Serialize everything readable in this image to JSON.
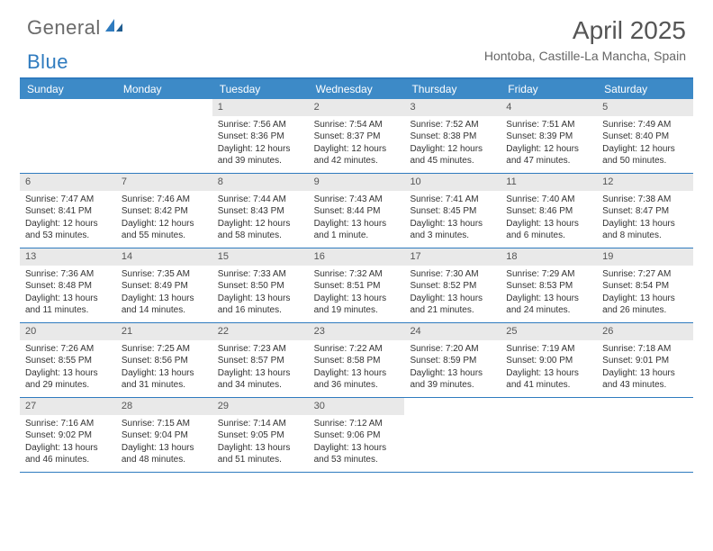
{
  "brand": {
    "text_gray": "General",
    "text_blue": "Blue"
  },
  "title": "April 2025",
  "location": "Hontoba, Castille-La Mancha, Spain",
  "colors": {
    "header_bg": "#3d8ac7",
    "border": "#2f7bbf",
    "daynum_bg": "#e9e9e9",
    "text_main": "#333333",
    "text_muted": "#666666",
    "page_bg": "#ffffff"
  },
  "typography": {
    "title_fontsize": 28,
    "location_fontsize": 14,
    "dayhead_fontsize": 12,
    "body_fontsize": 10
  },
  "day_headers": [
    "Sunday",
    "Monday",
    "Tuesday",
    "Wednesday",
    "Thursday",
    "Friday",
    "Saturday"
  ],
  "weeks": [
    [
      {
        "n": "",
        "sr": "",
        "ss": "",
        "dl": ""
      },
      {
        "n": "",
        "sr": "",
        "ss": "",
        "dl": ""
      },
      {
        "n": "1",
        "sr": "Sunrise: 7:56 AM",
        "ss": "Sunset: 8:36 PM",
        "dl": "Daylight: 12 hours and 39 minutes."
      },
      {
        "n": "2",
        "sr": "Sunrise: 7:54 AM",
        "ss": "Sunset: 8:37 PM",
        "dl": "Daylight: 12 hours and 42 minutes."
      },
      {
        "n": "3",
        "sr": "Sunrise: 7:52 AM",
        "ss": "Sunset: 8:38 PM",
        "dl": "Daylight: 12 hours and 45 minutes."
      },
      {
        "n": "4",
        "sr": "Sunrise: 7:51 AM",
        "ss": "Sunset: 8:39 PM",
        "dl": "Daylight: 12 hours and 47 minutes."
      },
      {
        "n": "5",
        "sr": "Sunrise: 7:49 AM",
        "ss": "Sunset: 8:40 PM",
        "dl": "Daylight: 12 hours and 50 minutes."
      }
    ],
    [
      {
        "n": "6",
        "sr": "Sunrise: 7:47 AM",
        "ss": "Sunset: 8:41 PM",
        "dl": "Daylight: 12 hours and 53 minutes."
      },
      {
        "n": "7",
        "sr": "Sunrise: 7:46 AM",
        "ss": "Sunset: 8:42 PM",
        "dl": "Daylight: 12 hours and 55 minutes."
      },
      {
        "n": "8",
        "sr": "Sunrise: 7:44 AM",
        "ss": "Sunset: 8:43 PM",
        "dl": "Daylight: 12 hours and 58 minutes."
      },
      {
        "n": "9",
        "sr": "Sunrise: 7:43 AM",
        "ss": "Sunset: 8:44 PM",
        "dl": "Daylight: 13 hours and 1 minute."
      },
      {
        "n": "10",
        "sr": "Sunrise: 7:41 AM",
        "ss": "Sunset: 8:45 PM",
        "dl": "Daylight: 13 hours and 3 minutes."
      },
      {
        "n": "11",
        "sr": "Sunrise: 7:40 AM",
        "ss": "Sunset: 8:46 PM",
        "dl": "Daylight: 13 hours and 6 minutes."
      },
      {
        "n": "12",
        "sr": "Sunrise: 7:38 AM",
        "ss": "Sunset: 8:47 PM",
        "dl": "Daylight: 13 hours and 8 minutes."
      }
    ],
    [
      {
        "n": "13",
        "sr": "Sunrise: 7:36 AM",
        "ss": "Sunset: 8:48 PM",
        "dl": "Daylight: 13 hours and 11 minutes."
      },
      {
        "n": "14",
        "sr": "Sunrise: 7:35 AM",
        "ss": "Sunset: 8:49 PM",
        "dl": "Daylight: 13 hours and 14 minutes."
      },
      {
        "n": "15",
        "sr": "Sunrise: 7:33 AM",
        "ss": "Sunset: 8:50 PM",
        "dl": "Daylight: 13 hours and 16 minutes."
      },
      {
        "n": "16",
        "sr": "Sunrise: 7:32 AM",
        "ss": "Sunset: 8:51 PM",
        "dl": "Daylight: 13 hours and 19 minutes."
      },
      {
        "n": "17",
        "sr": "Sunrise: 7:30 AM",
        "ss": "Sunset: 8:52 PM",
        "dl": "Daylight: 13 hours and 21 minutes."
      },
      {
        "n": "18",
        "sr": "Sunrise: 7:29 AM",
        "ss": "Sunset: 8:53 PM",
        "dl": "Daylight: 13 hours and 24 minutes."
      },
      {
        "n": "19",
        "sr": "Sunrise: 7:27 AM",
        "ss": "Sunset: 8:54 PM",
        "dl": "Daylight: 13 hours and 26 minutes."
      }
    ],
    [
      {
        "n": "20",
        "sr": "Sunrise: 7:26 AM",
        "ss": "Sunset: 8:55 PM",
        "dl": "Daylight: 13 hours and 29 minutes."
      },
      {
        "n": "21",
        "sr": "Sunrise: 7:25 AM",
        "ss": "Sunset: 8:56 PM",
        "dl": "Daylight: 13 hours and 31 minutes."
      },
      {
        "n": "22",
        "sr": "Sunrise: 7:23 AM",
        "ss": "Sunset: 8:57 PM",
        "dl": "Daylight: 13 hours and 34 minutes."
      },
      {
        "n": "23",
        "sr": "Sunrise: 7:22 AM",
        "ss": "Sunset: 8:58 PM",
        "dl": "Daylight: 13 hours and 36 minutes."
      },
      {
        "n": "24",
        "sr": "Sunrise: 7:20 AM",
        "ss": "Sunset: 8:59 PM",
        "dl": "Daylight: 13 hours and 39 minutes."
      },
      {
        "n": "25",
        "sr": "Sunrise: 7:19 AM",
        "ss": "Sunset: 9:00 PM",
        "dl": "Daylight: 13 hours and 41 minutes."
      },
      {
        "n": "26",
        "sr": "Sunrise: 7:18 AM",
        "ss": "Sunset: 9:01 PM",
        "dl": "Daylight: 13 hours and 43 minutes."
      }
    ],
    [
      {
        "n": "27",
        "sr": "Sunrise: 7:16 AM",
        "ss": "Sunset: 9:02 PM",
        "dl": "Daylight: 13 hours and 46 minutes."
      },
      {
        "n": "28",
        "sr": "Sunrise: 7:15 AM",
        "ss": "Sunset: 9:04 PM",
        "dl": "Daylight: 13 hours and 48 minutes."
      },
      {
        "n": "29",
        "sr": "Sunrise: 7:14 AM",
        "ss": "Sunset: 9:05 PM",
        "dl": "Daylight: 13 hours and 51 minutes."
      },
      {
        "n": "30",
        "sr": "Sunrise: 7:12 AM",
        "ss": "Sunset: 9:06 PM",
        "dl": "Daylight: 13 hours and 53 minutes."
      },
      {
        "n": "",
        "sr": "",
        "ss": "",
        "dl": ""
      },
      {
        "n": "",
        "sr": "",
        "ss": "",
        "dl": ""
      },
      {
        "n": "",
        "sr": "",
        "ss": "",
        "dl": ""
      }
    ]
  ]
}
